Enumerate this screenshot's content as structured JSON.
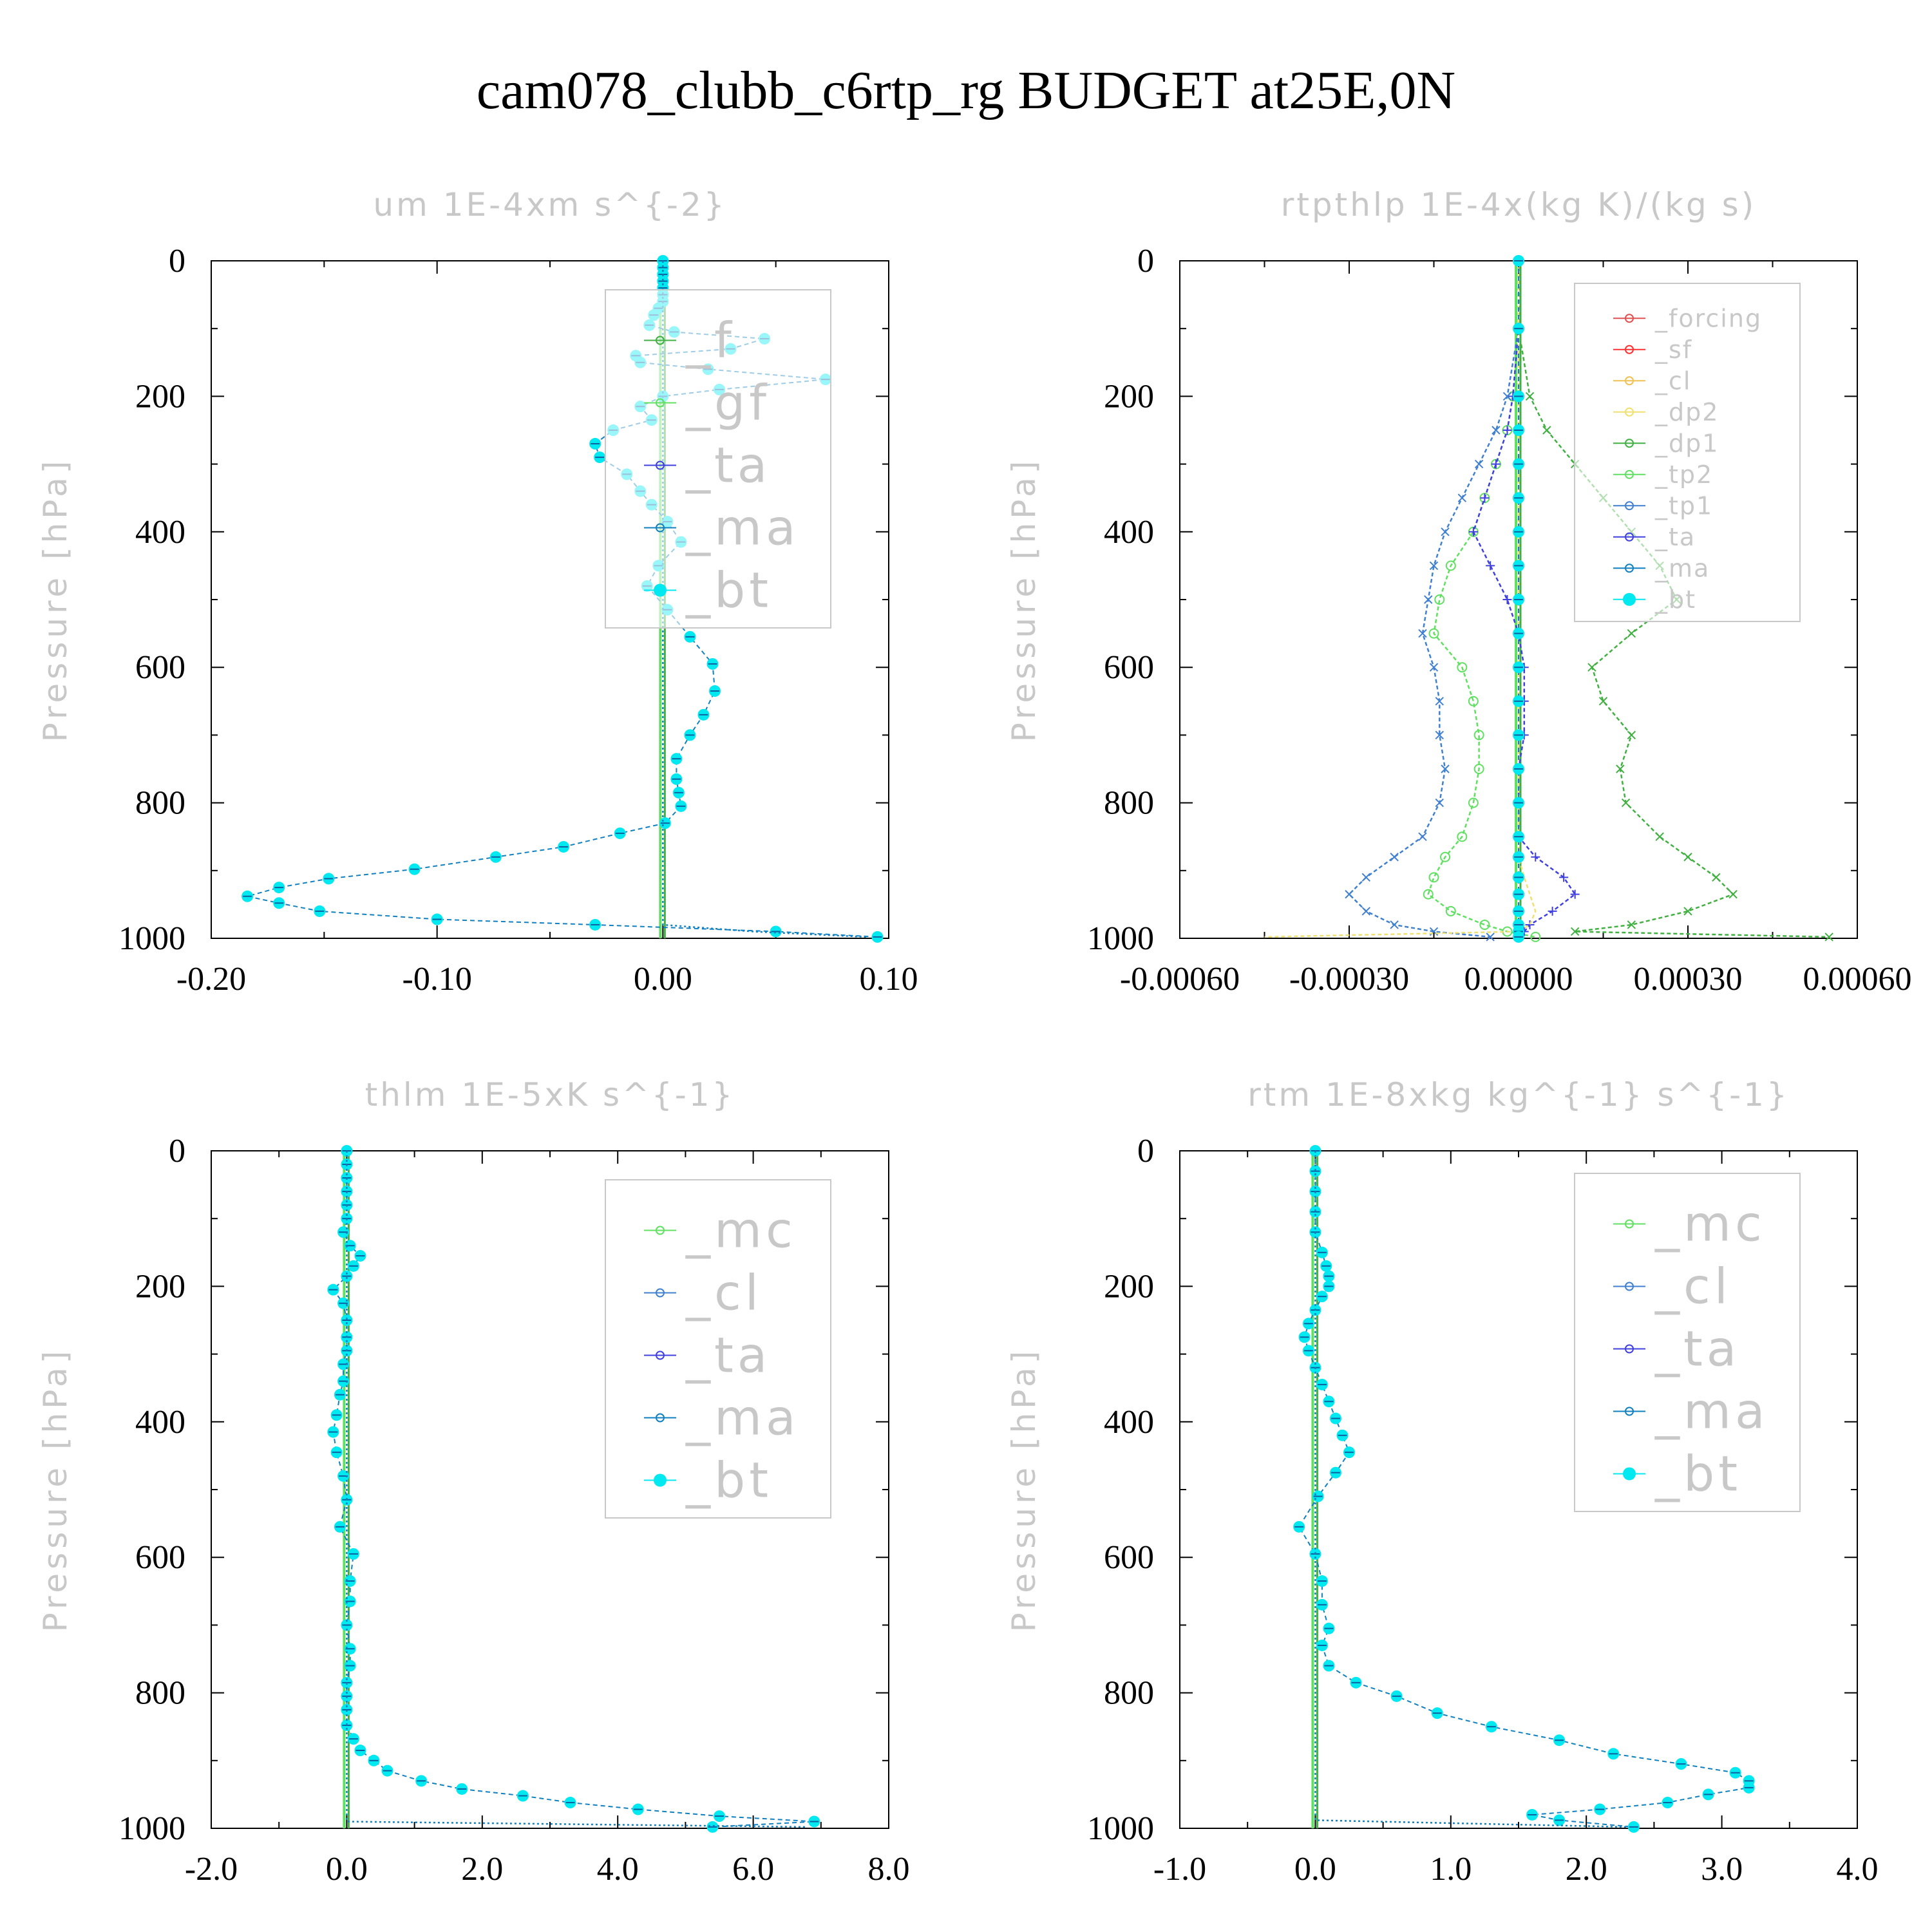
{
  "title": "cam078_clubb_c6rtp_rg  BUDGET at25E,0N",
  "colors": {
    "forcing": "#e05050",
    "sf": "#ff3030",
    "cl_tan": "#f0c050",
    "dp2": "#f0e070",
    "dp1": "#40b040",
    "tp2": "#60e060",
    "tp1": "#4080d0",
    "ta": "#4040e0",
    "ma": "#1080c0",
    "bt": "#00e8f0",
    "mc": "#60e060",
    "cl": "#4080d0",
    "frame": "#000000",
    "label": "#c8c8c8"
  },
  "chart_data": [
    {
      "id": "um",
      "type": "line",
      "title": "um  1E-4xm s^{-2}",
      "ylabel": "Pressure [hPa]",
      "xlim": [
        -0.2,
        0.1
      ],
      "ylim": [
        1000,
        0
      ],
      "xticks": [
        "-0.20",
        "-0.10",
        "0.00",
        "0.10"
      ],
      "xtick_values": [
        -0.2,
        -0.1,
        0.0,
        0.1
      ],
      "yticks": [
        "0",
        "200",
        "400",
        "600",
        "800",
        "1000"
      ],
      "legend": [
        "_f",
        "_gf",
        "_ta",
        "_ma",
        "_bt"
      ],
      "pressure": [
        0,
        10,
        20,
        30,
        40,
        50,
        60,
        70,
        80,
        95,
        105,
        115,
        130,
        140,
        150,
        160,
        175,
        190,
        200,
        215,
        235,
        250,
        270,
        290,
        315,
        340,
        360,
        385,
        415,
        450,
        480,
        515,
        555,
        595,
        635,
        670,
        700,
        735,
        765,
        785,
        805,
        830,
        845,
        865,
        880,
        898,
        912,
        925,
        938,
        948,
        960,
        972,
        980,
        990,
        998
      ],
      "series": [
        {
          "name": "_bt",
          "color": "bt",
          "values": [
            0,
            0,
            0,
            0,
            0,
            0,
            0,
            -0.002,
            -0.004,
            -0.006,
            0.005,
            0.045,
            0.03,
            -0.012,
            -0.01,
            0.02,
            0.072,
            0.025,
            0,
            -0.01,
            -0.005,
            -0.022,
            -0.03,
            -0.028,
            -0.016,
            -0.01,
            -0.005,
            0.002,
            0.008,
            -0.002,
            -0.007,
            0.002,
            0.012,
            0.022,
            0.023,
            0.018,
            0.012,
            0.006,
            0.006,
            0.007,
            0.008,
            0.001,
            -0.019,
            -0.044,
            -0.074,
            -0.11,
            -0.148,
            -0.17,
            -0.184,
            -0.17,
            -0.152,
            -0.1,
            -0.03,
            0.05,
            0.095
          ]
        },
        {
          "name": "_ma",
          "color": "ma",
          "values": [
            0,
            0,
            0,
            0,
            0,
            0,
            0,
            0,
            0,
            0,
            0,
            0,
            0,
            0,
            0,
            0,
            0,
            0,
            0,
            0,
            0,
            0,
            0,
            0,
            0,
            0,
            0,
            0,
            0,
            0,
            0,
            0,
            0,
            0,
            0,
            0,
            0,
            0,
            0,
            0,
            0,
            0,
            0,
            0,
            0,
            0,
            0,
            0,
            0,
            0,
            0,
            0,
            0,
            0.04,
            0.09
          ]
        }
      ]
    },
    {
      "id": "rtpthlp",
      "type": "line",
      "title": "rtpthlp  1E-4x(kg K)/(kg s)",
      "ylabel": "Pressure [hPa]",
      "xlim": [
        -0.0006,
        0.0006
      ],
      "ylim": [
        1000,
        0
      ],
      "xticks": [
        "-0.00060",
        "-0.00030",
        "0.00000",
        "0.00030",
        "0.00060"
      ],
      "xtick_values": [
        -0.0006,
        -0.0003,
        0.0,
        0.0003,
        0.0006
      ],
      "yticks": [
        "0",
        "200",
        "400",
        "600",
        "800",
        "1000"
      ],
      "legend": [
        "_forcing",
        "_sf",
        "_cl",
        "_dp2",
        "_dp1",
        "_tp2",
        "_tp1",
        "_ta",
        "_ma",
        "_bt"
      ],
      "pressure": [
        0,
        100,
        200,
        250,
        300,
        350,
        400,
        450,
        500,
        550,
        600,
        650,
        700,
        750,
        800,
        850,
        880,
        910,
        935,
        960,
        980,
        990,
        998
      ],
      "series": [
        {
          "name": "_dp1",
          "color": "dp1",
          "values": [
            0,
            0,
            2e-05,
            5e-05,
            0.0001,
            0.00015,
            0.0002,
            0.00025,
            0.00028,
            0.0002,
            0.00013,
            0.00015,
            0.0002,
            0.00018,
            0.00019,
            0.00025,
            0.0003,
            0.00035,
            0.00038,
            0.0003,
            0.0002,
            0.0001,
            0.00055
          ]
        },
        {
          "name": "_tp2",
          "color": "tp2",
          "values": [
            0,
            0,
            -1e-05,
            -2e-05,
            -4e-05,
            -6e-05,
            -8e-05,
            -0.00012,
            -0.00014,
            -0.00015,
            -0.0001,
            -8e-05,
            -7e-05,
            -7e-05,
            -8e-05,
            -0.0001,
            -0.00013,
            -0.00015,
            -0.00016,
            -0.00012,
            -6e-05,
            -2e-05,
            3e-05
          ]
        },
        {
          "name": "_tp1",
          "color": "tp1",
          "values": [
            0,
            0,
            -2e-05,
            -4e-05,
            -7e-05,
            -0.0001,
            -0.00013,
            -0.00015,
            -0.00016,
            -0.00017,
            -0.00015,
            -0.00014,
            -0.00014,
            -0.00013,
            -0.00014,
            -0.00017,
            -0.00022,
            -0.00027,
            -0.0003,
            -0.00027,
            -0.00022,
            -0.00015,
            -5e-05
          ]
        },
        {
          "name": "_ta",
          "color": "ta",
          "values": [
            0,
            0,
            -1e-05,
            -2e-05,
            -4e-05,
            -6e-05,
            -8e-05,
            -5e-05,
            -2e-05,
            0,
            1e-05,
            1e-05,
            1e-05,
            0,
            0,
            0,
            3e-05,
            8e-05,
            0.0001,
            6e-05,
            2e-05,
            1e-05,
            0
          ]
        },
        {
          "name": "_dp2",
          "color": "dp2",
          "values": [
            0,
            0,
            0,
            0,
            0,
            0,
            0,
            0,
            0,
            0,
            0,
            0,
            0,
            0,
            0,
            0,
            0,
            1e-05,
            2e-05,
            3e-05,
            2e-05,
            0,
            -0.00045
          ]
        },
        {
          "name": "_bt",
          "color": "bt",
          "values": [
            0,
            0,
            0,
            0,
            0,
            0,
            0,
            0,
            0,
            0,
            0,
            0,
            0,
            0,
            0,
            0,
            0,
            0,
            0,
            0,
            0,
            0,
            0
          ]
        }
      ]
    },
    {
      "id": "thlm",
      "type": "line",
      "title": "thlm  1E-5xK s^{-1}",
      "ylabel": "Pressure [hPa]",
      "xlim": [
        -2.0,
        8.0
      ],
      "ylim": [
        1000,
        0
      ],
      "xticks": [
        "-2.0",
        "0.0",
        "2.0",
        "4.0",
        "6.0",
        "8.0"
      ],
      "xtick_values": [
        -2.0,
        0.0,
        2.0,
        4.0,
        6.0,
        8.0
      ],
      "yticks": [
        "0",
        "200",
        "400",
        "600",
        "800",
        "1000"
      ],
      "legend": [
        "_mc",
        "_cl",
        "_ta",
        "_ma",
        "_bt"
      ],
      "pressure": [
        0,
        20,
        40,
        60,
        80,
        100,
        120,
        140,
        155,
        170,
        185,
        205,
        225,
        250,
        275,
        295,
        315,
        340,
        360,
        390,
        415,
        445,
        480,
        515,
        555,
        595,
        635,
        665,
        700,
        735,
        760,
        785,
        805,
        825,
        848,
        868,
        885,
        900,
        915,
        930,
        942,
        952,
        962,
        972,
        982,
        990,
        998
      ],
      "series": [
        {
          "name": "_bt",
          "color": "bt",
          "values": [
            0,
            0,
            0,
            0,
            0,
            0,
            -0.05,
            0.05,
            0.2,
            0.1,
            0,
            -0.2,
            -0.05,
            0,
            0,
            0,
            -0.05,
            -0.05,
            -0.1,
            -0.15,
            -0.2,
            -0.15,
            -0.05,
            0,
            -0.1,
            0.1,
            0.05,
            0.05,
            0,
            0.05,
            0.05,
            0,
            0,
            0,
            0,
            0.1,
            0.2,
            0.4,
            0.6,
            1.1,
            1.7,
            2.6,
            3.3,
            4.3,
            5.5,
            6.9,
            5.4
          ]
        },
        {
          "name": "_ma",
          "color": "ma",
          "values": [
            0,
            0,
            0,
            0,
            0,
            0,
            0,
            0,
            0,
            0,
            0,
            0,
            0,
            0,
            0,
            0,
            0,
            0,
            0,
            0,
            0,
            0,
            0,
            0,
            0,
            0,
            0,
            0,
            0,
            0,
            0,
            0,
            0,
            0,
            0,
            0,
            0,
            0,
            0,
            0,
            0,
            0,
            0,
            0,
            0,
            0,
            6.8
          ]
        }
      ]
    },
    {
      "id": "rtm",
      "type": "line",
      "title": "rtm  1E-8xkg kg^{-1} s^{-1}",
      "ylabel": "Pressure [hPa]",
      "xlim": [
        -1.0,
        4.0
      ],
      "ylim": [
        1000,
        0
      ],
      "xticks": [
        "-1.0",
        "0.0",
        "1.0",
        "2.0",
        "3.0",
        "4.0"
      ],
      "xtick_values": [
        -1.0,
        0.0,
        1.0,
        2.0,
        3.0,
        4.0
      ],
      "yticks": [
        "0",
        "200",
        "400",
        "600",
        "800",
        "1000"
      ],
      "legend": [
        "_mc",
        "_cl",
        "_ta",
        "_ma",
        "_bt"
      ],
      "pressure": [
        0,
        30,
        60,
        90,
        120,
        150,
        170,
        185,
        200,
        215,
        235,
        255,
        275,
        295,
        320,
        345,
        370,
        395,
        420,
        445,
        475,
        510,
        555,
        595,
        635,
        670,
        705,
        730,
        760,
        785,
        805,
        830,
        850,
        870,
        890,
        905,
        918,
        930,
        940,
        950,
        962,
        972,
        980,
        988,
        998
      ],
      "series": [
        {
          "name": "_bt",
          "color": "bt",
          "values": [
            0,
            0,
            0,
            0,
            0,
            0.05,
            0.08,
            0.1,
            0.1,
            0.05,
            0,
            -0.05,
            -0.08,
            -0.05,
            0,
            0.05,
            0.1,
            0.15,
            0.2,
            0.25,
            0.15,
            0.02,
            -0.12,
            0,
            0.05,
            0.05,
            0.1,
            0.05,
            0.1,
            0.3,
            0.6,
            0.9,
            1.3,
            1.8,
            2.2,
            2.7,
            3.1,
            3.2,
            3.2,
            2.9,
            2.6,
            2.1,
            1.6,
            1.8,
            2.35
          ]
        },
        {
          "name": "_ma",
          "color": "ma",
          "values": [
            0,
            0,
            0,
            0,
            0,
            0,
            0,
            0,
            0,
            0,
            0,
            0,
            0,
            0,
            0,
            0,
            0,
            0,
            0,
            0,
            0,
            0,
            0,
            0,
            0,
            0,
            0,
            0,
            0,
            0,
            0,
            0,
            0,
            0,
            0,
            0,
            0,
            0,
            0,
            0,
            0,
            0,
            0,
            0,
            2.3
          ]
        }
      ]
    }
  ]
}
